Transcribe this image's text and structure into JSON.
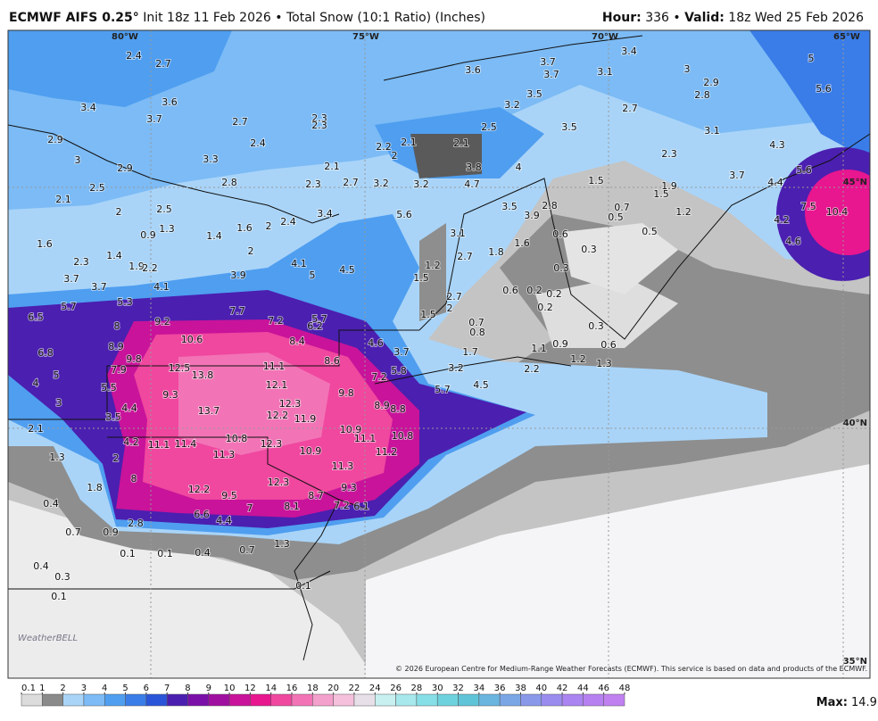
{
  "header": {
    "model": "ECMWF AIFS 0.25°",
    "run": "Init 18z 11 Feb 2026",
    "separator": "•",
    "product": "Total Snow (10:1 Ratio) (Inches)",
    "hour_label": "Hour:",
    "hour": "336",
    "valid_label": "Valid:",
    "valid": "18z Wed 25 Feb 2026"
  },
  "map": {
    "lon_labels": [
      "80°W",
      "75°W",
      "70°W",
      "65°W"
    ],
    "lat_labels": [
      "45°N",
      "40°N",
      "35°N"
    ],
    "labels": [
      2.4,
      2.7,
      3.6,
      3.7,
      3.7,
      3.1,
      3.4,
      3.0,
      2.9,
      2.8,
      5.0,
      5.6,
      3.4,
      3.7,
      3.6,
      2.7,
      2.3,
      2.3,
      3.2,
      3.5,
      2.5,
      3.5,
      2.7,
      3.1,
      2.9,
      3.0,
      3.3,
      2.4,
      2.2,
      2.1,
      2.1,
      4.3,
      2.0,
      2.1,
      3.8,
      4.0,
      2.3,
      2.9,
      2.5,
      2.8,
      2.3,
      2.7,
      3.2,
      3.2,
      4.7,
      1.5,
      3.7,
      4.4,
      5.6,
      2.1,
      2.0,
      2.5,
      5.6,
      3.5,
      3.9,
      2.8,
      0.7,
      0.5,
      1.9,
      1.5,
      1.2,
      7.5,
      10.4,
      4.2,
      1.6,
      0.9,
      1.3,
      1.4,
      1.6,
      2.0,
      2.4,
      3.4,
      3.1,
      0.6,
      0.5,
      4.6,
      1.4,
      2.3,
      2.0,
      1.8,
      1.6,
      2.7,
      0.3,
      1.9,
      2.2,
      4.1,
      4.5,
      1.2,
      1.5,
      0.3,
      3.7,
      3.7,
      4.1,
      3.9,
      5.0,
      0.6,
      0.2,
      0.2,
      5.3,
      7.7,
      2.7,
      2.0,
      0.2,
      6.5,
      5.7,
      8.0,
      9.2,
      7.2,
      5.7,
      6.2,
      1.5,
      0.7,
      0.8,
      0.3,
      8.9,
      10.6,
      8.4,
      4.6,
      3.7,
      1.1,
      0.9,
      0.6,
      6.8,
      9.8,
      8.6,
      1.7,
      1.2,
      1.3,
      7.9,
      12.5,
      13.8,
      11.1,
      7.2,
      5.8,
      3.2,
      2.2,
      5.0,
      4.0,
      5.5,
      12.1,
      9.8,
      5.7,
      4.5,
      9.3,
      3.0,
      4.4,
      8.9,
      8.8,
      12.3,
      12.2,
      11.9,
      13.7,
      3.5,
      2.1,
      10.9,
      11.1,
      10.8,
      10.8,
      4.2,
      11.1,
      11.4,
      12.3,
      11.3,
      10.9,
      11.2,
      1.3,
      2.0,
      11.3,
      8.0,
      12.3,
      9.3,
      1.8,
      12.2,
      9.5,
      8.7,
      7.2,
      6.1,
      7.0,
      8.1,
      0.4,
      6.6,
      4.4,
      2.8,
      0.9,
      0.7,
      1.3,
      0.1,
      0.1,
      0.4,
      0.7,
      0.4,
      0.3,
      0.1,
      0.1
    ],
    "copyright": "© 2026 European Centre for Medium-Range Weather Forecasts (ECMWF). This service is based on data and products of the ECMWF.",
    "logo": "WeatherBELL"
  },
  "colorbar": {
    "ticks": [
      0.1,
      1,
      2,
      3,
      4,
      5,
      6,
      7,
      8,
      9,
      10,
      12,
      14,
      16,
      18,
      20,
      22,
      24,
      26,
      28,
      30,
      32,
      34,
      36,
      38,
      40,
      42,
      44,
      46,
      48
    ],
    "colors": [
      "#dcdcdc",
      "#8a8a8a",
      "#a9d4f8",
      "#7cbbf5",
      "#4f9ef0",
      "#3a7de8",
      "#2a55d8",
      "#4b1fb0",
      "#7a10a8",
      "#a010a0",
      "#c8139a",
      "#e8168f",
      "#f0479f",
      "#f274b6",
      "#f3a0cc",
      "#f4c0dc",
      "#e7e0e8",
      "#c9f0f0",
      "#a6e8ec",
      "#86dee6",
      "#6ed2de",
      "#60c4d8",
      "#6ab4e0",
      "#7aa6e6",
      "#8a98ea",
      "#9a8cee",
      "#aa84f0",
      "#b680f0",
      "#c080f0"
    ]
  },
  "footer": {
    "max_label": "Max:",
    "max_value": 14.9
  }
}
